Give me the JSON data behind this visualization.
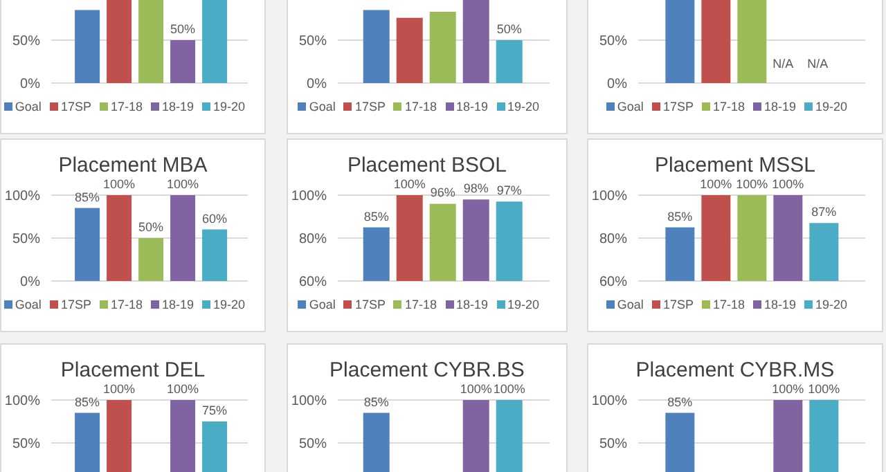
{
  "chart_data": [
    {
      "type": "bar",
      "categories": [
        null
      ],
      "ylim": [
        0,
        100
      ],
      "yticks": [
        {
          "value": 0,
          "label": "0%"
        },
        {
          "value": 50,
          "label": "50%"
        }
      ],
      "grid": "y",
      "legend": "bottom",
      "series": [
        {
          "name": "Goal",
          "color": "#4f81bd",
          "values": [
            85
          ],
          "value_labels": [
            null
          ]
        },
        {
          "name": "17SP",
          "color": "#c0504d",
          "values": [
            100
          ],
          "value_labels": [
            null
          ]
        },
        {
          "name": "17-18",
          "color": "#9bbb59",
          "values": [
            100
          ],
          "value_labels": [
            null
          ]
        },
        {
          "name": "18-19",
          "color": "#8064a2",
          "values": [
            50
          ],
          "value_labels": [
            "50%"
          ]
        },
        {
          "name": "19-20",
          "color": "#4bacc6",
          "values": [
            100
          ],
          "value_labels": [
            null
          ]
        }
      ]
    },
    {
      "type": "bar",
      "categories": [
        null
      ],
      "ylim": [
        0,
        100
      ],
      "yticks": [
        {
          "value": 0,
          "label": "0%"
        },
        {
          "value": 50,
          "label": "50%"
        }
      ],
      "grid": "y",
      "legend": "bottom",
      "series": [
        {
          "name": "Goal",
          "color": "#4f81bd",
          "values": [
            85
          ],
          "value_labels": [
            null
          ]
        },
        {
          "name": "17SP",
          "color": "#c0504d",
          "values": [
            76
          ],
          "value_labels": [
            null
          ]
        },
        {
          "name": "17-18",
          "color": "#9bbb59",
          "values": [
            83
          ],
          "value_labels": [
            null
          ]
        },
        {
          "name": "18-19",
          "color": "#8064a2",
          "values": [
            100
          ],
          "value_labels": [
            null
          ]
        },
        {
          "name": "19-20",
          "color": "#4bacc6",
          "values": [
            50
          ],
          "value_labels": [
            "50%"
          ]
        }
      ]
    },
    {
      "type": "bar",
      "categories": [
        null
      ],
      "ylim": [
        0,
        100
      ],
      "yticks": [
        {
          "value": 0,
          "label": "0%"
        },
        {
          "value": 50,
          "label": "50%"
        }
      ],
      "grid": "y",
      "legend": "bottom",
      "series": [
        {
          "name": "Goal",
          "color": "#4f81bd",
          "values": [
            100
          ],
          "value_labels": [
            null
          ]
        },
        {
          "name": "17SP",
          "color": "#c0504d",
          "values": [
            100
          ],
          "value_labels": [
            null
          ]
        },
        {
          "name": "17-18",
          "color": "#9bbb59",
          "values": [
            100
          ],
          "value_labels": [
            null
          ]
        },
        {
          "name": "18-19",
          "color": "#8064a2",
          "values": [
            null
          ],
          "value_labels": [
            "N/A"
          ]
        },
        {
          "name": "19-20",
          "color": "#4bacc6",
          "values": [
            null
          ],
          "value_labels": [
            "N/A"
          ]
        }
      ]
    },
    {
      "type": "bar",
      "title": "Placement MBA",
      "categories": [
        null
      ],
      "ylim": [
        0,
        100
      ],
      "yticks": [
        {
          "value": 0,
          "label": "0%"
        },
        {
          "value": 50,
          "label": "50%"
        },
        {
          "value": 100,
          "label": "100%"
        }
      ],
      "grid": "y",
      "legend": "bottom",
      "series": [
        {
          "name": "Goal",
          "color": "#4f81bd",
          "values": [
            85
          ],
          "value_labels": [
            "85%"
          ]
        },
        {
          "name": "17SP",
          "color": "#c0504d",
          "values": [
            100
          ],
          "value_labels": [
            "100%"
          ]
        },
        {
          "name": "17-18",
          "color": "#9bbb59",
          "values": [
            50
          ],
          "value_labels": [
            "50%"
          ]
        },
        {
          "name": "18-19",
          "color": "#8064a2",
          "values": [
            100
          ],
          "value_labels": [
            "100%"
          ]
        },
        {
          "name": "19-20",
          "color": "#4bacc6",
          "values": [
            60
          ],
          "value_labels": [
            "60%"
          ]
        }
      ]
    },
    {
      "type": "bar",
      "title": "Placement BSOL",
      "categories": [
        null
      ],
      "ylim": [
        60,
        100
      ],
      "yticks": [
        {
          "value": 60,
          "label": "60%"
        },
        {
          "value": 80,
          "label": "80%"
        },
        {
          "value": 100,
          "label": "100%"
        }
      ],
      "grid": "y",
      "legend": "bottom",
      "series": [
        {
          "name": "Goal",
          "color": "#4f81bd",
          "values": [
            85
          ],
          "value_labels": [
            "85%"
          ]
        },
        {
          "name": "17SP",
          "color": "#c0504d",
          "values": [
            100
          ],
          "value_labels": [
            "100%"
          ]
        },
        {
          "name": "17-18",
          "color": "#9bbb59",
          "values": [
            96
          ],
          "value_labels": [
            "96%"
          ]
        },
        {
          "name": "18-19",
          "color": "#8064a2",
          "values": [
            98
          ],
          "value_labels": [
            "98%"
          ]
        },
        {
          "name": "19-20",
          "color": "#4bacc6",
          "values": [
            97
          ],
          "value_labels": [
            "97%"
          ]
        }
      ]
    },
    {
      "type": "bar",
      "title": "Placement MSSL",
      "categories": [
        null
      ],
      "ylim": [
        60,
        100
      ],
      "yticks": [
        {
          "value": 60,
          "label": "60%"
        },
        {
          "value": 80,
          "label": "80%"
        },
        {
          "value": 100,
          "label": "100%"
        }
      ],
      "grid": "y",
      "legend": "bottom",
      "series": [
        {
          "name": "Goal",
          "color": "#4f81bd",
          "values": [
            85
          ],
          "value_labels": [
            "85%"
          ]
        },
        {
          "name": "17SP",
          "color": "#c0504d",
          "values": [
            100
          ],
          "value_labels": [
            "100%"
          ]
        },
        {
          "name": "17-18",
          "color": "#9bbb59",
          "values": [
            100
          ],
          "value_labels": [
            "100%"
          ]
        },
        {
          "name": "18-19",
          "color": "#8064a2",
          "values": [
            100
          ],
          "value_labels": [
            "100%"
          ]
        },
        {
          "name": "19-20",
          "color": "#4bacc6",
          "values": [
            87
          ],
          "value_labels": [
            "87%"
          ]
        }
      ]
    },
    {
      "type": "bar",
      "title": "Placement DEL",
      "categories": [
        null
      ],
      "ylim": [
        0,
        100
      ],
      "yticks": [
        {
          "value": 50,
          "label": "50%"
        },
        {
          "value": 100,
          "label": "100%"
        }
      ],
      "grid": "y",
      "series": [
        {
          "color": "#4f81bd",
          "values": [
            85
          ],
          "value_labels": [
            "85%"
          ]
        },
        {
          "color": "#c0504d",
          "values": [
            100
          ],
          "value_labels": [
            "100%"
          ]
        },
        {
          "color": "#9bbb59",
          "values": [
            null
          ],
          "value_labels": [
            null
          ]
        },
        {
          "color": "#8064a2",
          "values": [
            100
          ],
          "value_labels": [
            "100%"
          ]
        },
        {
          "color": "#4bacc6",
          "values": [
            75
          ],
          "value_labels": [
            "75%"
          ]
        }
      ]
    },
    {
      "type": "bar",
      "title": "Placement CYBR.BS",
      "categories": [
        null
      ],
      "ylim": [
        0,
        100
      ],
      "yticks": [
        {
          "value": 50,
          "label": "50%"
        },
        {
          "value": 100,
          "label": "100%"
        }
      ],
      "grid": "y",
      "series": [
        {
          "color": "#4f81bd",
          "values": [
            85
          ],
          "value_labels": [
            "85%"
          ]
        },
        {
          "color": "#c0504d",
          "values": [
            null
          ],
          "value_labels": [
            null
          ]
        },
        {
          "color": "#9bbb59",
          "values": [
            null
          ],
          "value_labels": [
            null
          ]
        },
        {
          "color": "#8064a2",
          "values": [
            100
          ],
          "value_labels": [
            "100%"
          ]
        },
        {
          "color": "#4bacc6",
          "values": [
            100
          ],
          "value_labels": [
            "100%"
          ]
        }
      ]
    },
    {
      "type": "bar",
      "title": "Placement CYBR.MS",
      "categories": [
        null
      ],
      "ylim": [
        0,
        100
      ],
      "yticks": [
        {
          "value": 50,
          "label": "50%"
        },
        {
          "value": 100,
          "label": "100%"
        }
      ],
      "grid": "y",
      "series": [
        {
          "color": "#4f81bd",
          "values": [
            85
          ],
          "value_labels": [
            "85%"
          ]
        },
        {
          "color": "#c0504d",
          "values": [
            null
          ],
          "value_labels": [
            null
          ]
        },
        {
          "color": "#9bbb59",
          "values": [
            null
          ],
          "value_labels": [
            null
          ]
        },
        {
          "color": "#8064a2",
          "values": [
            100
          ],
          "value_labels": [
            "100%"
          ]
        },
        {
          "color": "#4bacc6",
          "values": [
            100
          ],
          "value_labels": [
            "100%"
          ]
        }
      ]
    }
  ]
}
